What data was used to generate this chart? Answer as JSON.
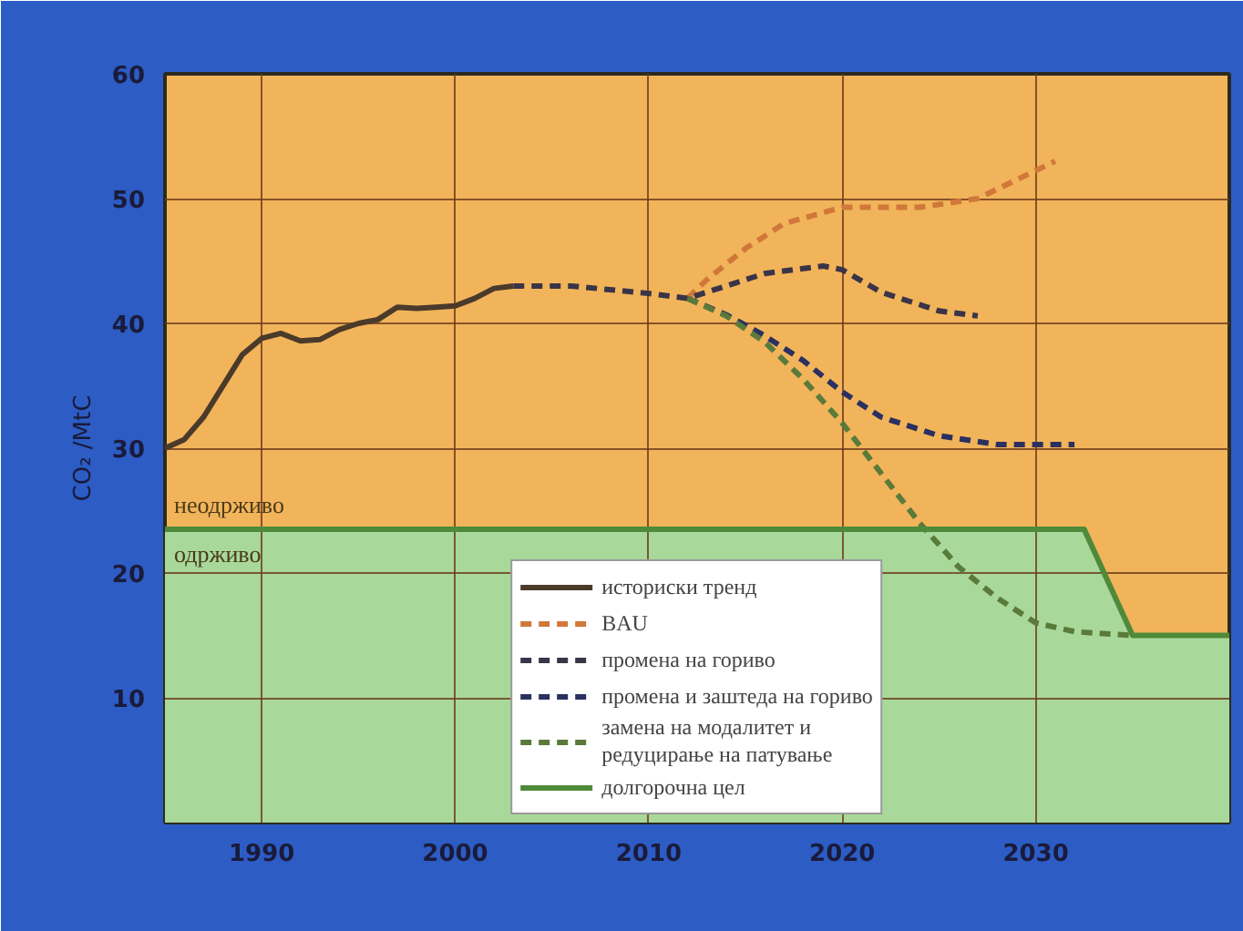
{
  "chart_data": {
    "type": "line",
    "ylabel": "CO₂ /MtC",
    "xlim": [
      1985,
      2040
    ],
    "ylim": [
      0,
      60
    ],
    "xticks": [
      1990,
      2000,
      2010,
      2020,
      2030
    ],
    "yticks": [
      10,
      20,
      30,
      40,
      50,
      60
    ],
    "grid": true,
    "legend": "bottom",
    "annotations": [
      "неодрживо",
      "одрживо"
    ],
    "series": [
      {
        "name": "историски тренд",
        "color": "#4a3a2a",
        "line_style": "solid",
        "x": [
          1985,
          1986,
          1987,
          1988,
          1989,
          1990,
          1991,
          1992,
          1993,
          1994,
          1995,
          1996,
          1997,
          1998,
          1999,
          2000,
          2001,
          2002,
          2003
        ],
        "values": [
          30,
          30.7,
          32.5,
          35,
          37.5,
          38.8,
          39.2,
          38.6,
          38.7,
          39.5,
          40,
          40.3,
          41.3,
          41.2,
          41.3,
          41.4,
          42,
          42.8,
          43
        ]
      },
      {
        "name": "BAU",
        "color": "#d0783a",
        "line_style": "dashed",
        "x": [
          2012,
          2013,
          2015,
          2017,
          2020,
          2024,
          2027,
          2029,
          2031
        ],
        "values": [
          42,
          43.5,
          46,
          48,
          49.3,
          49.3,
          50,
          51.5,
          53
        ]
      },
      {
        "name": "промена на гориво",
        "color": "#3a3448",
        "line_style": "dashed",
        "x": [
          2003,
          2006,
          2010,
          2012,
          2014,
          2016,
          2019,
          2020,
          2022,
          2025,
          2027
        ],
        "values": [
          43,
          43,
          42.4,
          42,
          43,
          44,
          44.6,
          44.3,
          42.5,
          41,
          40.6
        ]
      },
      {
        "name": "промена и заштеда на гориво",
        "color": "#2a3060",
        "line_style": "dashed",
        "x": [
          2012,
          2014,
          2016,
          2018,
          2020,
          2022,
          2025,
          2028,
          2032
        ],
        "values": [
          42,
          40.7,
          39,
          37,
          34.5,
          32.5,
          31,
          30.3,
          30.3
        ]
      },
      {
        "name": "замена на модалитет и\nредуцирање на патување",
        "color": "#5a7a3a",
        "line_style": "dashed",
        "x": [
          2012,
          2014,
          2016,
          2018,
          2020,
          2022,
          2024,
          2026,
          2028,
          2030,
          2032,
          2035
        ],
        "values": [
          42,
          40.6,
          38.5,
          35.5,
          32,
          28,
          24,
          20.5,
          18,
          16,
          15.3,
          15
        ]
      },
      {
        "name": "долгорочна цел",
        "type": "area",
        "color": "#4e8a3a",
        "line_style": "solid",
        "x": [
          1985,
          2032.5,
          2035,
          2040
        ],
        "values": [
          23.5,
          23.5,
          15,
          15
        ]
      }
    ]
  }
}
